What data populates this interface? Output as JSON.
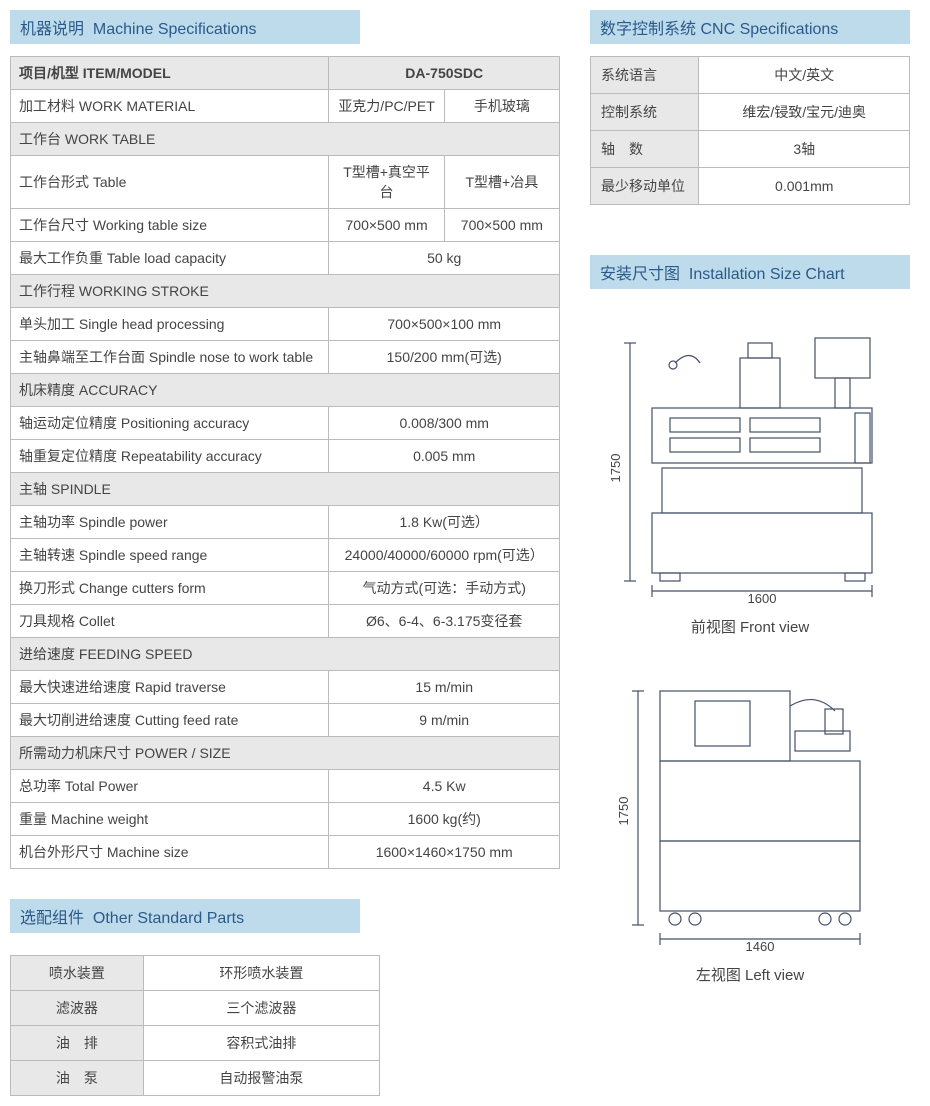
{
  "headers": {
    "machine_spec": {
      "zh": "机器说明",
      "en": "Machine Specifications"
    },
    "cnc_spec": {
      "zh": "数字控制系统",
      "en": "CNC Specifications"
    },
    "install_chart": {
      "zh": "安装尺寸图",
      "en": "Installation Size Chart"
    },
    "other_parts": {
      "zh": "选配组件",
      "en": "Other Standard Parts"
    }
  },
  "spec_table": {
    "head_item": "项目/机型 ITEM/MODEL",
    "head_model": "DA-750SDC",
    "rows": [
      {
        "type": "row",
        "label": "加工材料 WORK MATERIAL",
        "vals": [
          "亚克力/PC/PET",
          "手机玻璃"
        ]
      },
      {
        "type": "section",
        "label": "工作台 WORK TABLE"
      },
      {
        "type": "row",
        "label": "工作台形式 Table",
        "vals": [
          "T型槽+真空平台",
          "T型槽+冶具"
        ]
      },
      {
        "type": "row",
        "label": "工作台尺寸 Working table size",
        "vals": [
          "700×500 mm",
          "700×500 mm"
        ]
      },
      {
        "type": "row",
        "label": "最大工作负重 Table load capacity",
        "vals": [
          "50 kg"
        ]
      },
      {
        "type": "section",
        "label": "工作行程 WORKING STROKE"
      },
      {
        "type": "row",
        "label": "单头加工 Single head processing",
        "vals": [
          "700×500×100 mm"
        ]
      },
      {
        "type": "row",
        "label": "主轴鼻端至工作台面 Spindle nose to work table",
        "vals": [
          "150/200 mm(可选)"
        ]
      },
      {
        "type": "section",
        "label": "机床精度 ACCURACY"
      },
      {
        "type": "row",
        "label": "轴运动定位精度 Positioning accuracy",
        "vals": [
          "0.008/300 mm"
        ]
      },
      {
        "type": "row",
        "label": "轴重复定位精度 Repeatability accuracy",
        "vals": [
          "0.005 mm"
        ]
      },
      {
        "type": "section",
        "label": "主轴 SPINDLE"
      },
      {
        "type": "row",
        "label": "主轴功率 Spindle power",
        "vals": [
          "1.8 Kw(可选）"
        ]
      },
      {
        "type": "row",
        "label": "主轴转速 Spindle speed range",
        "vals": [
          "24000/40000/60000 rpm(可选）"
        ]
      },
      {
        "type": "row",
        "label": "换刀形式 Change cutters form",
        "vals": [
          "气动方式(可选：手动方式)"
        ]
      },
      {
        "type": "row",
        "label": "刀具规格 Collet",
        "vals": [
          "Ø6、6-4、6-3.175变径套"
        ]
      },
      {
        "type": "section",
        "label": "进给速度 FEEDING SPEED"
      },
      {
        "type": "row",
        "label": "最大快速进给速度 Rapid traverse",
        "vals": [
          "15 m/min"
        ]
      },
      {
        "type": "row",
        "label": "最大切削进给速度 Cutting feed rate",
        "vals": [
          "9 m/min"
        ]
      },
      {
        "type": "section",
        "label": "所需动力机床尺寸 POWER / SIZE"
      },
      {
        "type": "row",
        "label": "总功率 Total Power",
        "vals": [
          "4.5 Kw"
        ]
      },
      {
        "type": "row",
        "label": "重量 Machine weight",
        "vals": [
          "1600 kg(约)"
        ]
      },
      {
        "type": "row",
        "label": "机台外形尺寸 Machine size",
        "vals": [
          "1600×1460×1750 mm"
        ]
      }
    ]
  },
  "cnc_table": {
    "rows": [
      {
        "label": "系统语言",
        "value": "中文/英文"
      },
      {
        "label": "控制系统",
        "value": "维宏/锓致/宝元/迪奥"
      },
      {
        "label": "轴　数",
        "value": "3轴"
      },
      {
        "label": "最少移动单位",
        "value": "0.001mm"
      }
    ]
  },
  "parts_table": {
    "rows": [
      {
        "label": "喷水装置",
        "value": "环形喷水装置"
      },
      {
        "label": "滤波器",
        "value": "三个滤波器"
      },
      {
        "label": "油　排",
        "value": "容积式油排"
      },
      {
        "label": "油　泵",
        "value": "自动报警油泵"
      }
    ]
  },
  "diagrams": {
    "front": {
      "width_label": "1600",
      "height_label": "1750",
      "caption": "前视图  Front view"
    },
    "left": {
      "width_label": "1460",
      "height_label": "1750",
      "caption": "左视图  Left view"
    }
  },
  "colors": {
    "header_bg": "#bedbec",
    "header_text": "#2b5a8a",
    "cell_border": "#bbbbbb",
    "section_bg": "#e8e8e8",
    "diagram_stroke": "#445066"
  }
}
